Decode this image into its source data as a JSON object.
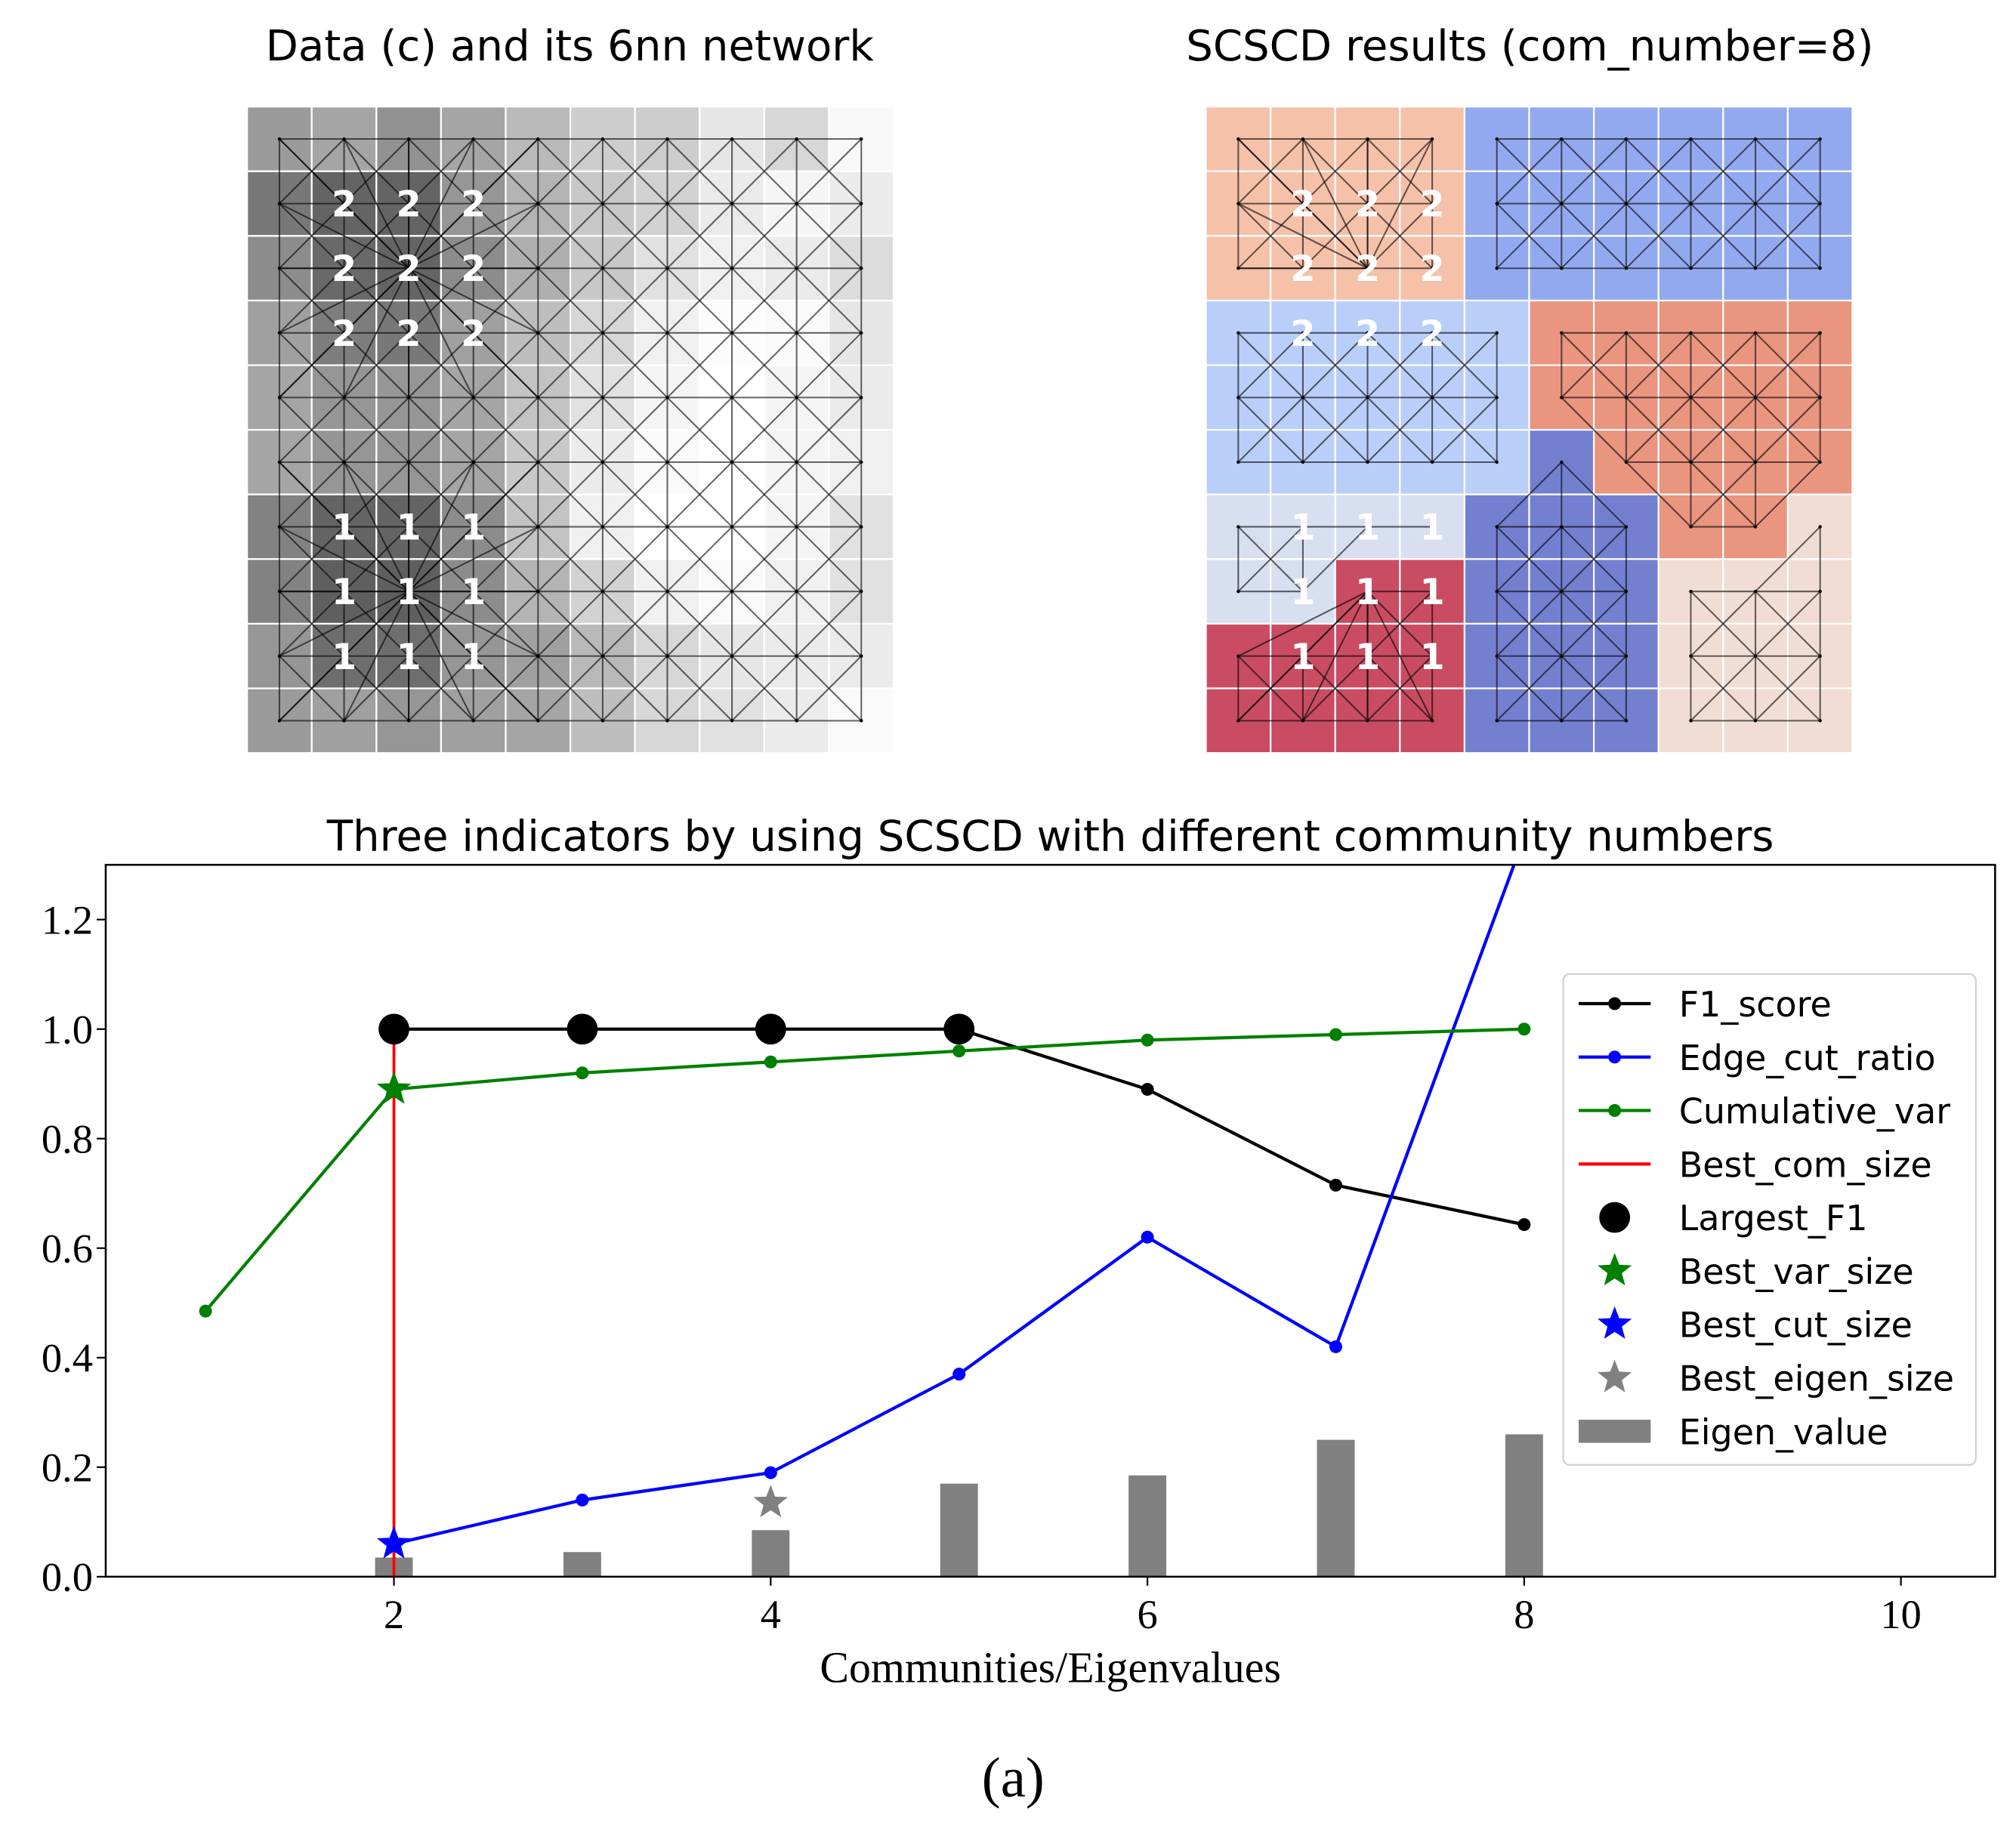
{
  "panels": {
    "left": {
      "title": "Data (c) and its 6nn network",
      "grid_gray": [
        [
          155,
          165,
          145,
          165,
          185,
          205,
          205,
          230,
          215,
          248
        ],
        [
          120,
          100,
          100,
          150,
          180,
          200,
          210,
          235,
          245,
          235
        ],
        [
          140,
          105,
          100,
          140,
          175,
          200,
          225,
          240,
          235,
          220
        ],
        [
          160,
          125,
          120,
          160,
          190,
          215,
          240,
          252,
          250,
          230
        ],
        [
          165,
          150,
          150,
          165,
          195,
          225,
          245,
          255,
          245,
          235
        ],
        [
          165,
          150,
          150,
          165,
          200,
          235,
          250,
          255,
          245,
          240
        ],
        [
          130,
          100,
          100,
          140,
          195,
          240,
          255,
          255,
          245,
          225
        ],
        [
          130,
          95,
          95,
          140,
          180,
          210,
          240,
          250,
          240,
          225
        ],
        [
          150,
          110,
          110,
          150,
          160,
          185,
          215,
          230,
          235,
          235
        ],
        [
          155,
          160,
          150,
          160,
          165,
          190,
          215,
          225,
          235,
          250
        ]
      ],
      "labels": [
        {
          "row": 1,
          "col": 1,
          "text": "2"
        },
        {
          "row": 1,
          "col": 2,
          "text": "2"
        },
        {
          "row": 1,
          "col": 3,
          "text": "2"
        },
        {
          "row": 2,
          "col": 1,
          "text": "2"
        },
        {
          "row": 2,
          "col": 2,
          "text": "2"
        },
        {
          "row": 2,
          "col": 3,
          "text": "2"
        },
        {
          "row": 3,
          "col": 1,
          "text": "2"
        },
        {
          "row": 3,
          "col": 2,
          "text": "2"
        },
        {
          "row": 3,
          "col": 3,
          "text": "2"
        },
        {
          "row": 6,
          "col": 1,
          "text": "1"
        },
        {
          "row": 6,
          "col": 2,
          "text": "1"
        },
        {
          "row": 6,
          "col": 3,
          "text": "1"
        },
        {
          "row": 7,
          "col": 1,
          "text": "1"
        },
        {
          "row": 7,
          "col": 2,
          "text": "1"
        },
        {
          "row": 7,
          "col": 3,
          "text": "1"
        },
        {
          "row": 8,
          "col": 1,
          "text": "1"
        },
        {
          "row": 8,
          "col": 2,
          "text": "1"
        },
        {
          "row": 8,
          "col": 3,
          "text": "1"
        }
      ]
    },
    "right": {
      "title": "SCSCD results (com_number=8)",
      "community_colors": [
        "#f6c1a9",
        "#93a9ef",
        "#b9cff9",
        "#e9957f",
        "#7380d0",
        "#d8dff0",
        "#c94c62",
        "#f1ddd3"
      ],
      "community_grid": [
        [
          0,
          0,
          0,
          0,
          1,
          1,
          1,
          1,
          1,
          1
        ],
        [
          0,
          0,
          0,
          0,
          1,
          1,
          1,
          1,
          1,
          1
        ],
        [
          0,
          0,
          0,
          0,
          1,
          1,
          1,
          1,
          1,
          1
        ],
        [
          2,
          2,
          2,
          2,
          2,
          3,
          3,
          3,
          3,
          3
        ],
        [
          2,
          2,
          2,
          2,
          2,
          3,
          3,
          3,
          3,
          3
        ],
        [
          2,
          2,
          2,
          2,
          2,
          4,
          3,
          3,
          3,
          3
        ],
        [
          5,
          5,
          5,
          5,
          4,
          4,
          4,
          3,
          3,
          7
        ],
        [
          5,
          5,
          6,
          6,
          4,
          4,
          4,
          7,
          7,
          7
        ],
        [
          6,
          6,
          6,
          6,
          4,
          4,
          4,
          7,
          7,
          7
        ],
        [
          6,
          6,
          6,
          6,
          4,
          4,
          4,
          7,
          7,
          7
        ]
      ]
    }
  },
  "chart_data": {
    "type": "line",
    "title": "Three indicators by using SCSCD with different community numbers",
    "xlabel": "Communities/Eigenvalues",
    "ylabel": "",
    "xlim": [
      0.47,
      10.5
    ],
    "ylim": [
      0,
      1.3
    ],
    "xticks": [
      {
        "v": 2,
        "label": "2"
      },
      {
        "v": 4,
        "label": "4"
      },
      {
        "v": 6,
        "label": "6"
      },
      {
        "v": 8,
        "label": "8"
      },
      {
        "v": 10,
        "label": "10"
      }
    ],
    "yticks": [
      {
        "v": 0,
        "label": "0.0"
      },
      {
        "v": 0.2,
        "label": "0.2"
      },
      {
        "v": 0.4,
        "label": "0.4"
      },
      {
        "v": 0.6,
        "label": "0.6"
      },
      {
        "v": 0.8,
        "label": "0.8"
      },
      {
        "v": 1.0,
        "label": "1.0"
      },
      {
        "v": 1.2,
        "label": "1.2"
      }
    ],
    "series": [
      {
        "name": "F1_score",
        "kind": "line",
        "color": "#000000",
        "x": [
          2,
          3,
          4,
          5,
          6,
          7,
          8
        ],
        "y": [
          1.0,
          1.0,
          1.0,
          1.0,
          0.89,
          0.715,
          0.643
        ]
      },
      {
        "name": "Edge_cut_ratio",
        "kind": "line",
        "color": "#0000ff",
        "x": [
          2,
          3,
          4,
          5,
          6,
          7,
          8
        ],
        "y": [
          0.06,
          0.14,
          0.19,
          0.37,
          0.62,
          0.42,
          1.35
        ]
      },
      {
        "name": "Cumulative_var",
        "kind": "line",
        "color": "#008000",
        "x": [
          1,
          2,
          3,
          4,
          5,
          6,
          7,
          8
        ],
        "y": [
          0.485,
          0.89,
          0.92,
          0.94,
          0.96,
          0.98,
          0.99,
          1.0
        ]
      },
      {
        "name": "Best_com_size",
        "kind": "vline",
        "color": "#ff0000",
        "x": [
          2,
          2
        ],
        "y": [
          0,
          1.0
        ]
      },
      {
        "name": "Largest_F1",
        "kind": "bigdot",
        "color": "#000000",
        "x": [
          2,
          3,
          4,
          5
        ],
        "y": [
          1.0,
          1.0,
          1.0,
          1.0
        ]
      },
      {
        "name": "Best_var_size",
        "kind": "star",
        "color": "#008000",
        "x": [
          2
        ],
        "y": [
          0.89
        ]
      },
      {
        "name": "Best_cut_size",
        "kind": "star",
        "color": "#0000ff",
        "x": [
          2
        ],
        "y": [
          0.06
        ]
      },
      {
        "name": "Best_eigen_size",
        "kind": "star",
        "color": "#808080",
        "x": [
          4
        ],
        "y": [
          0.135
        ]
      },
      {
        "name": "Eigen_value",
        "kind": "bar",
        "color": "#808080",
        "x": [
          2,
          3,
          4,
          5,
          6,
          7,
          8
        ],
        "y": [
          0.035,
          0.045,
          0.085,
          0.17,
          0.185,
          0.25,
          0.26
        ]
      }
    ],
    "legend_position": "center-right"
  },
  "caption": "(a)"
}
